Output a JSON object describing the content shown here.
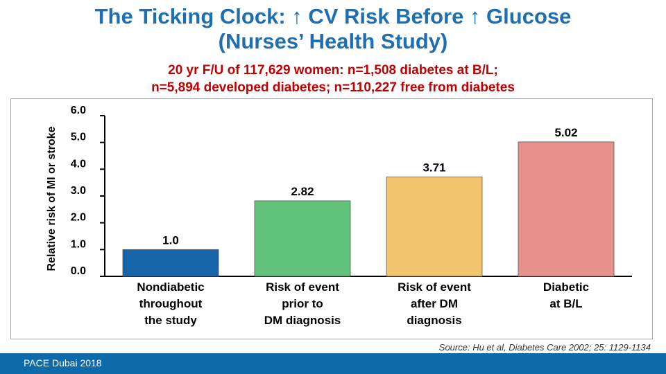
{
  "title_line1": "The Ticking Clock: ↑ CV Risk Before ↑ Glucose",
  "title_line2": "(Nurses’ Health Study)",
  "subtitle_line1": "20 yr F/U of 117,629 women: n=1,508 diabetes at B/L;",
  "subtitle_line2": "n=5,894 developed diabetes; n=110,227 free from diabetes",
  "source": "Source: Hu et al, Diabetes Care 2002; 25: 1129-1134",
  "footer": "PACE Dubai 2018",
  "colors": {
    "title": "#1f6fb0",
    "subtitle": "#c00000",
    "footer_bar": "#0f6aaa"
  },
  "chart_data": {
    "type": "bar",
    "ylabel": "Relative risk of MI or stroke",
    "xlabel": "",
    "ylim": [
      0,
      6
    ],
    "yticks": [
      "0.0",
      "1.0",
      "2.0",
      "3.0",
      "4.0",
      "5.0",
      "6.0"
    ],
    "categories": [
      [
        "Nondiabetic",
        "throughout",
        "the study"
      ],
      [
        "Risk of event",
        "prior to",
        "DM diagnosis"
      ],
      [
        "Risk of event",
        "after DM",
        "diagnosis"
      ],
      [
        "Diabetic",
        "at B/L"
      ]
    ],
    "values": [
      1.0,
      2.82,
      3.71,
      5.02
    ],
    "value_labels": [
      "1.0",
      "2.82",
      "3.71",
      "5.02"
    ],
    "bar_colors": [
      "#1565a8",
      "#62c17a",
      "#f2c46e",
      "#e8918a"
    ],
    "grid": false,
    "legend": "none"
  }
}
